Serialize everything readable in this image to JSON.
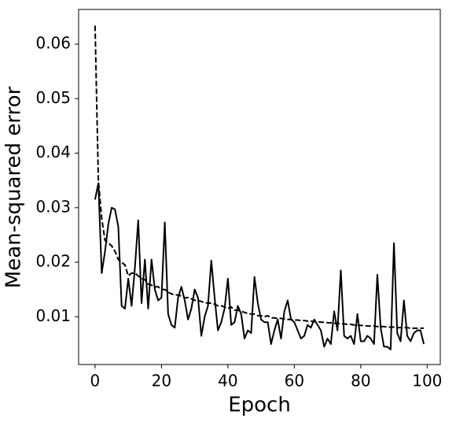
{
  "chart_data": {
    "type": "line",
    "xlabel": "Epoch",
    "ylabel": "Mean-squared error",
    "x": [
      0,
      1,
      2,
      3,
      4,
      5,
      6,
      7,
      8,
      9,
      10,
      11,
      12,
      13,
      14,
      15,
      16,
      17,
      18,
      19,
      20,
      21,
      22,
      23,
      24,
      25,
      26,
      27,
      28,
      29,
      30,
      31,
      32,
      33,
      34,
      35,
      36,
      37,
      38,
      39,
      40,
      41,
      42,
      43,
      44,
      45,
      46,
      47,
      48,
      49,
      50,
      51,
      52,
      53,
      54,
      55,
      56,
      57,
      58,
      59,
      60,
      61,
      62,
      63,
      64,
      65,
      66,
      67,
      68,
      69,
      70,
      71,
      72,
      73,
      74,
      75,
      76,
      77,
      78,
      79,
      80,
      81,
      82,
      83,
      84,
      85,
      86,
      87,
      88,
      89,
      90,
      91,
      92,
      93,
      94,
      95,
      96,
      97,
      98,
      99
    ],
    "series": [
      {
        "color": "#000000",
        "linestyle": "solid",
        "values": [
          0.0315,
          0.0345,
          0.018,
          0.022,
          0.027,
          0.03,
          0.0297,
          0.0265,
          0.012,
          0.0115,
          0.017,
          0.012,
          0.019,
          0.0277,
          0.0125,
          0.0205,
          0.0115,
          0.0205,
          0.015,
          0.013,
          0.0135,
          0.0273,
          0.0105,
          0.0085,
          0.008,
          0.0135,
          0.0155,
          0.013,
          0.0095,
          0.0115,
          0.015,
          0.0135,
          0.0065,
          0.01,
          0.012,
          0.0203,
          0.0135,
          0.0075,
          0.009,
          0.0115,
          0.017,
          0.0085,
          0.009,
          0.012,
          0.0105,
          0.006,
          0.0075,
          0.007,
          0.0173,
          0.0125,
          0.0095,
          0.009,
          0.009,
          0.005,
          0.0075,
          0.0095,
          0.006,
          0.011,
          0.013,
          0.0095,
          0.009,
          0.0075,
          0.006,
          0.0065,
          0.0085,
          0.008,
          0.0095,
          0.0085,
          0.0075,
          0.0045,
          0.006,
          0.005,
          0.011,
          0.0075,
          0.0185,
          0.0065,
          0.006,
          0.0065,
          0.005,
          0.0105,
          0.0055,
          0.0055,
          0.0065,
          0.006,
          0.005,
          0.0177,
          0.008,
          0.0045,
          0.0045,
          0.004,
          0.0235,
          0.007,
          0.0055,
          0.013,
          0.0065,
          0.0055,
          0.007,
          0.0075,
          0.0075,
          0.005
        ]
      },
      {
        "color": "#000000",
        "linestyle": "dashed",
        "values": [
          0.0634,
          0.035,
          0.028,
          0.024,
          0.0235,
          0.023,
          0.022,
          0.0205,
          0.02,
          0.0195,
          0.0175,
          0.018,
          0.018,
          0.0175,
          0.017,
          0.0168,
          0.016,
          0.0158,
          0.0155,
          0.0155,
          0.015,
          0.015,
          0.0145,
          0.0142,
          0.014,
          0.014,
          0.0138,
          0.0135,
          0.0135,
          0.0133,
          0.013,
          0.013,
          0.0128,
          0.0126,
          0.0125,
          0.0125,
          0.0123,
          0.012,
          0.012,
          0.0118,
          0.0115,
          0.0118,
          0.0112,
          0.0112,
          0.011,
          0.0108,
          0.0106,
          0.0105,
          0.0105,
          0.0102,
          0.0102,
          0.01,
          0.0102,
          0.0098,
          0.0098,
          0.0097,
          0.0097,
          0.0096,
          0.0095,
          0.0095,
          0.0094,
          0.0094,
          0.0093,
          0.0093,
          0.0092,
          0.0092,
          0.0091,
          0.0091,
          0.009,
          0.009,
          0.0089,
          0.0089,
          0.0088,
          0.0088,
          0.0087,
          0.0087,
          0.0086,
          0.0086,
          0.0085,
          0.0085,
          0.0084,
          0.0084,
          0.0083,
          0.0083,
          0.0083,
          0.0082,
          0.0082,
          0.0082,
          0.0081,
          0.0081,
          0.0081,
          0.008,
          0.008,
          0.008,
          0.008,
          0.0079,
          0.0079,
          0.0079,
          0.0079,
          0.0079
        ]
      }
    ],
    "xlim": [
      -4.95,
      103.95
    ],
    "xticks": [
      0,
      20,
      40,
      60,
      80,
      100
    ],
    "ylim": [
      0.00124,
      0.06636
    ],
    "yticks": [
      0.01,
      0.02,
      0.03,
      0.04,
      0.05,
      0.06
    ],
    "grid": false
  }
}
